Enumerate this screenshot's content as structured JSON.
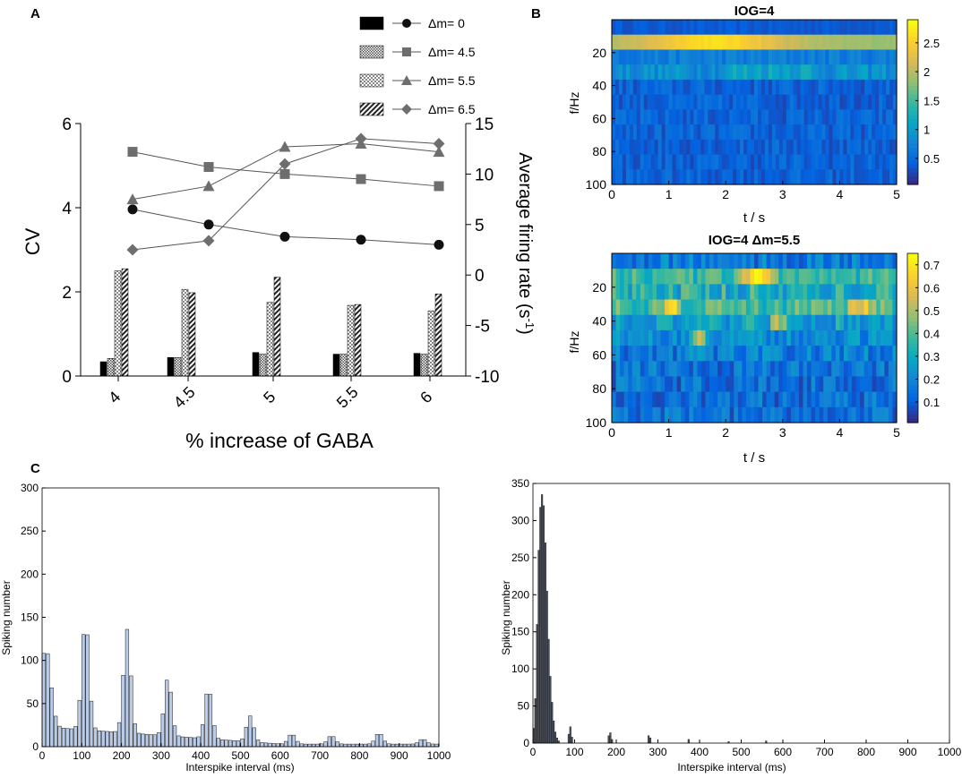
{
  "panel_labels": {
    "a": "A",
    "b": "B",
    "c": "C"
  },
  "legend": {
    "entries": [
      {
        "label": "Δm= 0",
        "bar": "solid",
        "marker": "circle"
      },
      {
        "label": "Δm= 4.5",
        "bar": "checker",
        "marker": "square"
      },
      {
        "label": "Δm= 5.5",
        "bar": "dots",
        "marker": "triangle"
      },
      {
        "label": "Δm= 6.5",
        "bar": "hatch",
        "marker": "diamond"
      }
    ]
  },
  "colors": {
    "marker_dark": "#111111",
    "marker_grey": "#6e6e6e",
    "line": "#555555",
    "hist_left": "#b9cbe6",
    "hist_right": "#4a4f5c"
  },
  "chart_data": [
    {
      "id": "A",
      "type": "bar",
      "title": "",
      "xlabel": "% increase of GABA",
      "ylabel": "CV",
      "y2label": "Average firing rate (s",
      "y2label_sup": "-1",
      "y2label_end": ")",
      "categories": [
        "4",
        "4.5",
        "5",
        "5.5",
        "6"
      ],
      "ylim": [
        0,
        6
      ],
      "yticks": [
        "0",
        "2",
        "4",
        "6"
      ],
      "y2lim": [
        -10,
        15
      ],
      "y2ticks": [
        "-10",
        "-5",
        "0",
        "5",
        "10",
        "15"
      ],
      "series": [
        {
          "name": "Δm= 0",
          "values": [
            0.34,
            0.44,
            0.56,
            0.52,
            0.54
          ]
        },
        {
          "name": "Δm= 4.5",
          "values": [
            0.42,
            0.44,
            0.52,
            0.52,
            0.52
          ]
        },
        {
          "name": "Δm= 5.5",
          "values": [
            2.5,
            2.06,
            1.75,
            1.68,
            1.55
          ]
        },
        {
          "name": "Δm= 6.5",
          "values": [
            2.55,
            1.98,
            2.35,
            1.7,
            1.95
          ]
        }
      ],
      "lines": [
        {
          "name": "Δm= 0",
          "marker": "circle",
          "values": [
            6.5,
            5.0,
            3.8,
            3.5,
            3.0
          ]
        },
        {
          "name": "Δm= 4.5",
          "marker": "square",
          "values": [
            12.2,
            10.7,
            10.0,
            9.5,
            8.8
          ]
        },
        {
          "name": "Δm= 5.5",
          "marker": "triangle",
          "values": [
            7.5,
            8.8,
            12.7,
            13.0,
            12.2
          ]
        },
        {
          "name": "Δm= 6.5",
          "marker": "diamond",
          "values": [
            2.5,
            3.4,
            11.0,
            13.5,
            13.0
          ]
        }
      ]
    },
    {
      "id": "B1",
      "type": "heatmap",
      "title": "IOG=4",
      "xlabel": "t / s",
      "ylabel": "f/Hz",
      "xlim": [
        0,
        5
      ],
      "xticks": [
        "0",
        "1",
        "2",
        "3",
        "4",
        "5"
      ],
      "ylim": [
        0,
        100
      ],
      "yticks": [
        "20",
        "40",
        "60",
        "80",
        "100"
      ],
      "colorbar_range": [
        0.05,
        2.9
      ],
      "colorbar_ticks": [
        "0.5",
        "1",
        "1.5",
        "2",
        "2.5"
      ],
      "note": "bright band near 10 Hz (values up to ~2.5); rest of spectrum low (~0.3)"
    },
    {
      "id": "B2",
      "type": "heatmap",
      "title": "IOG=4 Δm=5.5",
      "xlabel": "t / s",
      "ylabel": "f/Hz",
      "xlim": [
        0,
        5
      ],
      "xticks": [
        "0",
        "1",
        "2",
        "3",
        "4",
        "5"
      ],
      "ylim": [
        0,
        100
      ],
      "yticks": [
        "20",
        "40",
        "60",
        "80",
        "100"
      ],
      "colorbar_range": [
        0.01,
        0.75
      ],
      "colorbar_ticks": [
        "0.1",
        "0.2",
        "0.3",
        "0.4",
        "0.5",
        "0.6",
        "0.7"
      ],
      "note": "scattered power; hot spots near 10 Hz at ~2.5 s and near 40 Hz at ~1 s and ~4.3 s"
    },
    {
      "id": "C1",
      "type": "bar",
      "title": "",
      "xlabel": "Interspike interval (ms)",
      "ylabel": "Spiking number",
      "xlim": [
        0,
        1000
      ],
      "xticks": [
        "0",
        "100",
        "200",
        "300",
        "400",
        "500",
        "600",
        "700",
        "800",
        "900",
        "1000"
      ],
      "ylim": [
        0,
        300
      ],
      "yticks": [
        "0",
        "50",
        "100",
        "150",
        "200",
        "250",
        "300"
      ],
      "bin_width": 10,
      "peaks": [
        {
          "center": 10,
          "height": 92
        },
        {
          "center": 110,
          "height": 128
        },
        {
          "center": 215,
          "height": 120
        },
        {
          "center": 318,
          "height": 68
        },
        {
          "center": 420,
          "height": 60
        },
        {
          "center": 525,
          "height": 30
        },
        {
          "center": 630,
          "height": 12
        },
        {
          "center": 730,
          "height": 10
        },
        {
          "center": 850,
          "height": 13
        },
        {
          "center": 960,
          "height": 6
        }
      ]
    },
    {
      "id": "C2",
      "type": "bar",
      "title": "",
      "xlabel": "Interspike interval (ms)",
      "ylabel": "Spiking number",
      "xlim": [
        0,
        1000
      ],
      "xticks": [
        "0",
        "100",
        "200",
        "300",
        "400",
        "500",
        "600",
        "700",
        "800",
        "900",
        "1000"
      ],
      "ylim": [
        0,
        350
      ],
      "yticks": [
        "0",
        "50",
        "100",
        "150",
        "200",
        "250",
        "300",
        "350"
      ],
      "bin_width": 4,
      "values_by_interval": [
        {
          "x": 2,
          "v": 20
        },
        {
          "x": 6,
          "v": 60
        },
        {
          "x": 10,
          "v": 160
        },
        {
          "x": 14,
          "v": 260
        },
        {
          "x": 18,
          "v": 318
        },
        {
          "x": 22,
          "v": 335
        },
        {
          "x": 26,
          "v": 320
        },
        {
          "x": 30,
          "v": 270
        },
        {
          "x": 34,
          "v": 205
        },
        {
          "x": 38,
          "v": 140
        },
        {
          "x": 42,
          "v": 90
        },
        {
          "x": 46,
          "v": 55
        },
        {
          "x": 50,
          "v": 30
        },
        {
          "x": 54,
          "v": 15
        },
        {
          "x": 58,
          "v": 7
        },
        {
          "x": 62,
          "v": 3
        },
        {
          "x": 86,
          "v": 12
        },
        {
          "x": 90,
          "v": 22
        },
        {
          "x": 94,
          "v": 8
        },
        {
          "x": 182,
          "v": 10
        },
        {
          "x": 186,
          "v": 14
        },
        {
          "x": 190,
          "v": 5
        },
        {
          "x": 278,
          "v": 10
        },
        {
          "x": 282,
          "v": 7
        },
        {
          "x": 374,
          "v": 5
        },
        {
          "x": 470,
          "v": 2
        },
        {
          "x": 560,
          "v": 3
        }
      ]
    }
  ]
}
